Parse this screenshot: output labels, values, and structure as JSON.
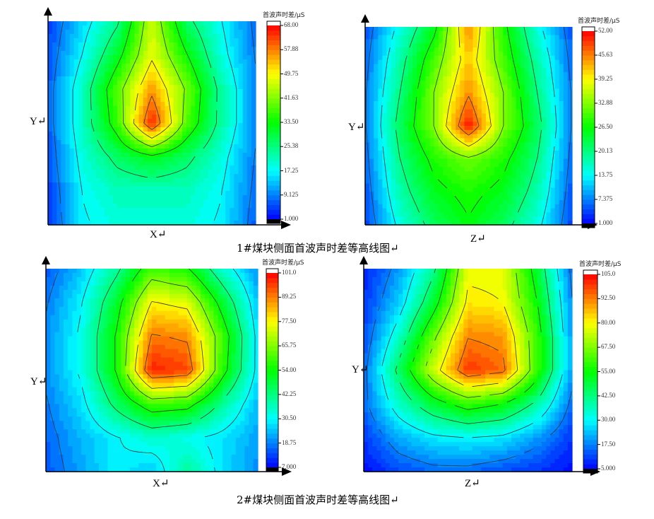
{
  "captions": [
    "1#煤块侧面首波声时差等高线图↵",
    "2#煤块侧面首波声时差等高线图↵"
  ],
  "colormap": [
    "#0000ff",
    "#00ffff",
    "#00ff00",
    "#ffff00",
    "#ff6600",
    "#ff0000"
  ],
  "chart_data": [
    {
      "type": "heatmap",
      "style": "filled-contour",
      "xlabel": "X↵",
      "ylabel": "Y↵",
      "colorbar_title": "首波声时差/μS",
      "colorbar_ticks": [
        "68.00",
        "57.88",
        "49.75",
        "41.63",
        "33.50",
        "25.38",
        "17.25",
        "9.125",
        "1.000"
      ],
      "range": [
        1,
        68
      ],
      "grid": [
        [
          5,
          15,
          25,
          48,
          28,
          18,
          8
        ],
        [
          6,
          18,
          32,
          50,
          35,
          20,
          9
        ],
        [
          7,
          22,
          40,
          58,
          42,
          24,
          10
        ],
        [
          7,
          22,
          38,
          66,
          40,
          24,
          10
        ],
        [
          6,
          20,
          28,
          33,
          28,
          20,
          9
        ],
        [
          5,
          18,
          22,
          22,
          22,
          18,
          8
        ],
        [
          4,
          17,
          20,
          20,
          20,
          17,
          7
        ]
      ]
    },
    {
      "type": "heatmap",
      "style": "filled-contour",
      "xlabel": "Z↵",
      "ylabel": "Y↵",
      "colorbar_title": "首波声时差/μS",
      "colorbar_ticks": [
        "52.00",
        "45.63",
        "39.25",
        "32.88",
        "26.50",
        "20.13",
        "13.75",
        "7.375",
        "1.000"
      ],
      "range": [
        1,
        52
      ],
      "grid": [
        [
          5,
          15,
          25,
          45,
          28,
          15,
          5
        ],
        [
          6,
          18,
          30,
          42,
          30,
          18,
          6
        ],
        [
          7,
          20,
          33,
          45,
          33,
          20,
          7
        ],
        [
          7,
          22,
          33,
          51,
          33,
          22,
          7
        ],
        [
          6,
          20,
          28,
          32,
          28,
          20,
          6
        ],
        [
          5,
          18,
          25,
          28,
          25,
          18,
          5
        ],
        [
          4,
          15,
          22,
          26,
          22,
          15,
          4
        ]
      ]
    },
    {
      "type": "heatmap",
      "style": "filled-contour",
      "xlabel": "X↵",
      "ylabel": "Y↵",
      "colorbar_title": "首波声时差/μS",
      "colorbar_ticks": [
        "101.0",
        "89.25",
        "77.50",
        "65.75",
        "54.00",
        "42.25",
        "30.50",
        "18.75",
        "7.000"
      ],
      "range": [
        7,
        101
      ],
      "grid": [
        [
          15,
          25,
          40,
          60,
          55,
          35,
          20
        ],
        [
          18,
          30,
          50,
          78,
          75,
          50,
          25
        ],
        [
          20,
          32,
          55,
          90,
          88,
          60,
          28
        ],
        [
          20,
          32,
          55,
          98,
          95,
          58,
          28
        ],
        [
          18,
          28,
          45,
          60,
          58,
          40,
          24
        ],
        [
          16,
          24,
          30,
          35,
          32,
          28,
          22
        ],
        [
          15,
          22,
          30,
          25,
          40,
          28,
          20
        ]
      ]
    },
    {
      "type": "heatmap",
      "style": "filled-contour",
      "xlabel": "Z↵",
      "ylabel": "Y↵",
      "colorbar_title": "首波声时差/μS",
      "colorbar_ticks": [
        "105.0",
        "92.50",
        "80.00",
        "67.50",
        "55.00",
        "42.50",
        "30.00",
        "17.50",
        "5.000"
      ],
      "range": [
        5,
        105
      ],
      "grid": [
        [
          8,
          20,
          40,
          78,
          78,
          50,
          15
        ],
        [
          10,
          25,
          50,
          82,
          80,
          55,
          18
        ],
        [
          12,
          35,
          65,
          92,
          90,
          60,
          20
        ],
        [
          15,
          45,
          75,
          100,
          95,
          60,
          20
        ],
        [
          15,
          35,
          50,
          60,
          55,
          40,
          15
        ],
        [
          10,
          22,
          28,
          30,
          28,
          20,
          10
        ],
        [
          6,
          12,
          15,
          15,
          12,
          10,
          6
        ]
      ]
    }
  ]
}
